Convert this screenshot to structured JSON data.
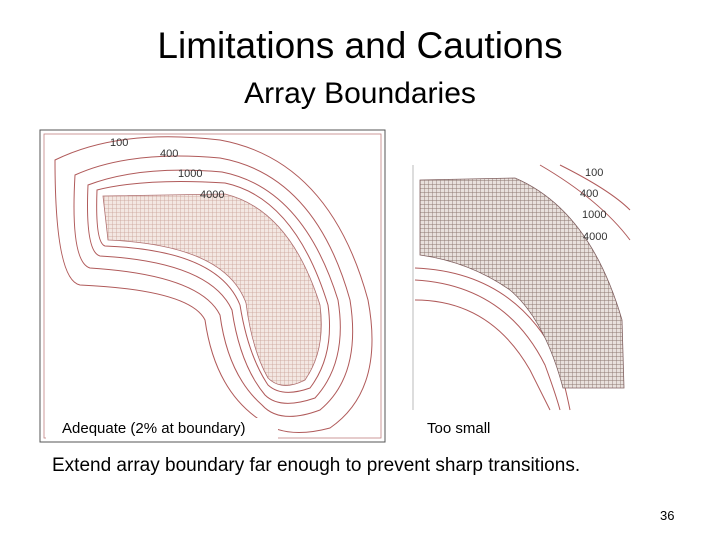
{
  "slide": {
    "title": "Limitations and Cautions",
    "subtitle": "Array Boundaries",
    "figures": [
      {
        "caption": "Adequate (2% at boundary)",
        "contour_labels": [
          "100",
          "400",
          "1000",
          "4000"
        ]
      },
      {
        "caption": "Too small",
        "contour_labels": [
          "100",
          "400",
          "1000",
          "4000"
        ]
      }
    ],
    "text": "Extend array boundary far enough to prevent sharp transitions.",
    "page_number": "36"
  }
}
